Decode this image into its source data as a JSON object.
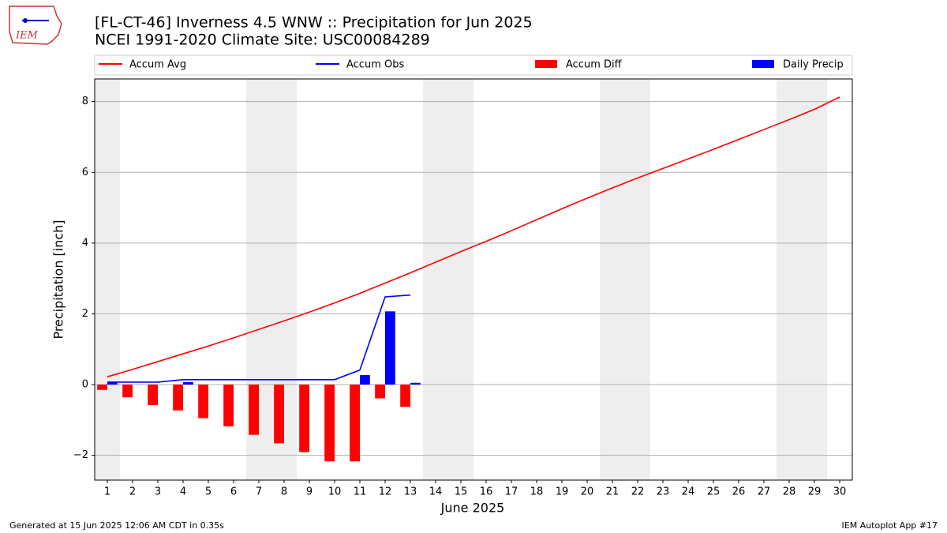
{
  "logo_text": "IEM",
  "chart_data": {
    "type": "bar_line",
    "title": "[FL-CT-46] Inverness 4.5 WNW :: Precipitation for Jun 2025",
    "subtitle": "NCEI 1991-2020 Climate Site: USC00084289",
    "x_label": "June 2025",
    "y_label": "Precipitation [inch]",
    "x": [
      1,
      2,
      3,
      4,
      5,
      6,
      7,
      8,
      9,
      10,
      11,
      12,
      13,
      14,
      15,
      16,
      17,
      18,
      19,
      20,
      21,
      22,
      23,
      24,
      25,
      26,
      27,
      28,
      29,
      30
    ],
    "xlim": [
      0.5,
      30.5
    ],
    "xticks": [
      1,
      2,
      3,
      4,
      5,
      6,
      7,
      8,
      9,
      10,
      11,
      12,
      13,
      14,
      15,
      16,
      17,
      18,
      19,
      20,
      21,
      22,
      23,
      24,
      25,
      26,
      27,
      28,
      29,
      30
    ],
    "ylim": [
      -2.7,
      8.64
    ],
    "yticks": [
      {
        "value": -2,
        "label": "−2"
      },
      0,
      2,
      4,
      6,
      8
    ],
    "grid": true,
    "shaded_days": [
      1,
      7,
      8,
      14,
      15,
      21,
      22,
      28,
      29
    ],
    "series": [
      {
        "name": "Accum Avg",
        "kind": "line",
        "color": "#ff0000",
        "values": [
          0.22,
          0.43,
          0.65,
          0.87,
          1.09,
          1.32,
          1.56,
          1.8,
          2.05,
          2.31,
          2.58,
          2.87,
          3.16,
          3.46,
          3.76,
          4.05,
          4.35,
          4.66,
          4.97,
          5.27,
          5.56,
          5.84,
          6.11,
          6.38,
          6.65,
          6.93,
          7.21,
          7.49,
          7.78,
          8.13
        ]
      },
      {
        "name": "Accum Obs",
        "kind": "line",
        "color": "#0000ff",
        "values": [
          0.07,
          0.07,
          0.07,
          0.14,
          0.14,
          0.14,
          0.14,
          0.14,
          0.14,
          0.14,
          0.41,
          2.48,
          2.53,
          null,
          null,
          null,
          null,
          null,
          null,
          null,
          null,
          null,
          null,
          null,
          null,
          null,
          null,
          null,
          null,
          null
        ]
      },
      {
        "name": "Accum Diff",
        "kind": "bar",
        "offset": -0.2,
        "color": "#ff0000",
        "values": [
          -0.15,
          -0.36,
          -0.58,
          -0.73,
          -0.95,
          -1.18,
          -1.42,
          -1.66,
          -1.91,
          -2.17,
          -2.17,
          -0.39,
          -0.63,
          null,
          null,
          null,
          null,
          null,
          null,
          null,
          null,
          null,
          null,
          null,
          null,
          null,
          null,
          null,
          null,
          null
        ]
      },
      {
        "name": "Daily Precip",
        "kind": "bar",
        "offset": 0.2,
        "color": "#0000ff",
        "values": [
          0.07,
          0,
          0,
          0.07,
          0,
          0,
          0,
          0,
          0,
          0,
          0.27,
          2.07,
          0.05,
          null,
          null,
          null,
          null,
          null,
          null,
          null,
          null,
          null,
          null,
          null,
          null,
          null,
          null,
          null,
          null,
          null
        ]
      }
    ],
    "footer_left": "Generated at 15 Jun 2025 12:06 AM CDT in 0.35s",
    "footer_right": "IEM Autoplot App #17"
  }
}
